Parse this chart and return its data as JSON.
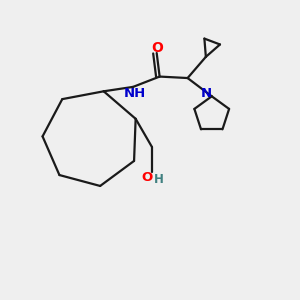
{
  "background_color": "#efefef",
  "bond_color": "#1a1a1a",
  "atom_colors": {
    "O": "#ff0000",
    "N": "#0000cc",
    "OH_O": "#ff0000",
    "OH_H": "#408080"
  },
  "figsize": [
    3.0,
    3.0
  ],
  "dpi": 100,
  "lw": 1.6
}
